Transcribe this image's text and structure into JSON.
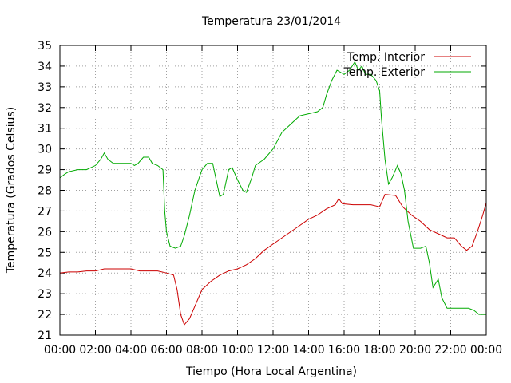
{
  "chart_data": {
    "type": "line",
    "title": "Temperatura 23/01/2014",
    "xlabel": "Tiempo (Hora Local Argentina)",
    "ylabel": "Temperatura (Grados Celsius)",
    "xlim": [
      0,
      24
    ],
    "ylim": [
      21,
      35
    ],
    "grid": true,
    "legend_position": "top-right",
    "x_tick_labels": [
      "00:00",
      "02:00",
      "04:00",
      "06:00",
      "08:00",
      "10:00",
      "12:00",
      "14:00",
      "16:00",
      "18:00",
      "20:00",
      "22:00",
      "00:00"
    ],
    "y_tick_labels": [
      "21",
      "22",
      "23",
      "24",
      "25",
      "26",
      "27",
      "28",
      "29",
      "30",
      "31",
      "32",
      "33",
      "34",
      "35"
    ],
    "series": [
      {
        "name": "Temp. Interior",
        "color": "#cc0000",
        "points": [
          [
            0,
            24.0
          ],
          [
            0.5,
            24.05
          ],
          [
            1,
            24.05
          ],
          [
            1.5,
            24.1
          ],
          [
            2,
            24.1
          ],
          [
            2.5,
            24.2
          ],
          [
            3,
            24.2
          ],
          [
            3.5,
            24.2
          ],
          [
            4,
            24.2
          ],
          [
            4.5,
            24.1
          ],
          [
            5,
            24.1
          ],
          [
            5.5,
            24.1
          ],
          [
            6,
            24.0
          ],
          [
            6.4,
            23.9
          ],
          [
            6.6,
            23.2
          ],
          [
            6.8,
            22.0
          ],
          [
            7.0,
            21.5
          ],
          [
            7.3,
            21.8
          ],
          [
            7.6,
            22.4
          ],
          [
            8.0,
            23.2
          ],
          [
            8.5,
            23.6
          ],
          [
            9,
            23.9
          ],
          [
            9.5,
            24.1
          ],
          [
            10,
            24.2
          ],
          [
            10.5,
            24.4
          ],
          [
            11,
            24.7
          ],
          [
            11.5,
            25.1
          ],
          [
            12,
            25.4
          ],
          [
            12.5,
            25.7
          ],
          [
            13,
            26.0
          ],
          [
            13.5,
            26.3
          ],
          [
            14,
            26.6
          ],
          [
            14.5,
            26.8
          ],
          [
            15,
            27.1
          ],
          [
            15.5,
            27.3
          ],
          [
            15.7,
            27.6
          ],
          [
            15.9,
            27.35
          ],
          [
            16.5,
            27.3
          ],
          [
            17,
            27.3
          ],
          [
            17.5,
            27.3
          ],
          [
            18,
            27.2
          ],
          [
            18.3,
            27.8
          ],
          [
            18.9,
            27.75
          ],
          [
            19.3,
            27.2
          ],
          [
            19.8,
            26.8
          ],
          [
            20.3,
            26.5
          ],
          [
            20.8,
            26.1
          ],
          [
            21.3,
            25.9
          ],
          [
            21.8,
            25.7
          ],
          [
            22.2,
            25.7
          ],
          [
            22.6,
            25.3
          ],
          [
            22.9,
            25.1
          ],
          [
            23.2,
            25.3
          ],
          [
            23.5,
            26.0
          ],
          [
            23.8,
            26.8
          ],
          [
            24.0,
            27.4
          ]
        ]
      },
      {
        "name": "Temp. Exterior",
        "color": "#00aa00",
        "points": [
          [
            0,
            28.6
          ],
          [
            0.3,
            28.8
          ],
          [
            0.5,
            28.9
          ],
          [
            1,
            29.0
          ],
          [
            1.5,
            29.0
          ],
          [
            2,
            29.2
          ],
          [
            2.3,
            29.5
          ],
          [
            2.5,
            29.8
          ],
          [
            2.7,
            29.5
          ],
          [
            3,
            29.3
          ],
          [
            3.5,
            29.3
          ],
          [
            4,
            29.3
          ],
          [
            4.2,
            29.2
          ],
          [
            4.4,
            29.3
          ],
          [
            4.7,
            29.6
          ],
          [
            5,
            29.6
          ],
          [
            5.2,
            29.3
          ],
          [
            5.5,
            29.2
          ],
          [
            5.8,
            29.0
          ],
          [
            5.9,
            27.0
          ],
          [
            6.0,
            26.0
          ],
          [
            6.2,
            25.3
          ],
          [
            6.5,
            25.2
          ],
          [
            6.8,
            25.3
          ],
          [
            7.0,
            25.8
          ],
          [
            7.3,
            26.8
          ],
          [
            7.6,
            28.0
          ],
          [
            8,
            29.0
          ],
          [
            8.3,
            29.3
          ],
          [
            8.6,
            29.3
          ],
          [
            8.8,
            28.5
          ],
          [
            9.0,
            27.7
          ],
          [
            9.2,
            27.8
          ],
          [
            9.5,
            29.0
          ],
          [
            9.7,
            29.1
          ],
          [
            10,
            28.5
          ],
          [
            10.3,
            28.0
          ],
          [
            10.5,
            27.9
          ],
          [
            10.8,
            28.6
          ],
          [
            11,
            29.2
          ],
          [
            11.5,
            29.5
          ],
          [
            12,
            30.0
          ],
          [
            12.5,
            30.8
          ],
          [
            13,
            31.2
          ],
          [
            13.5,
            31.6
          ],
          [
            14,
            31.7
          ],
          [
            14.5,
            31.8
          ],
          [
            14.8,
            32.0
          ],
          [
            15,
            32.6
          ],
          [
            15.3,
            33.3
          ],
          [
            15.6,
            33.8
          ],
          [
            16,
            33.6
          ],
          [
            16.3,
            33.8
          ],
          [
            16.6,
            34.2
          ],
          [
            16.8,
            33.8
          ],
          [
            17,
            34.0
          ],
          [
            17.2,
            33.6
          ],
          [
            17.5,
            33.6
          ],
          [
            17.8,
            33.3
          ],
          [
            18.0,
            32.8
          ],
          [
            18.1,
            31.5
          ],
          [
            18.3,
            29.5
          ],
          [
            18.5,
            28.3
          ],
          [
            18.7,
            28.6
          ],
          [
            19,
            29.2
          ],
          [
            19.2,
            28.8
          ],
          [
            19.4,
            28.0
          ],
          [
            19.6,
            26.5
          ],
          [
            19.9,
            25.2
          ],
          [
            20.3,
            25.2
          ],
          [
            20.6,
            25.3
          ],
          [
            20.8,
            24.5
          ],
          [
            21.0,
            23.3
          ],
          [
            21.3,
            23.7
          ],
          [
            21.5,
            22.8
          ],
          [
            21.8,
            22.3
          ],
          [
            22.2,
            22.3
          ],
          [
            22.6,
            22.3
          ],
          [
            23,
            22.3
          ],
          [
            23.3,
            22.2
          ],
          [
            23.6,
            22.0
          ],
          [
            24.0,
            22.0
          ]
        ]
      }
    ]
  }
}
